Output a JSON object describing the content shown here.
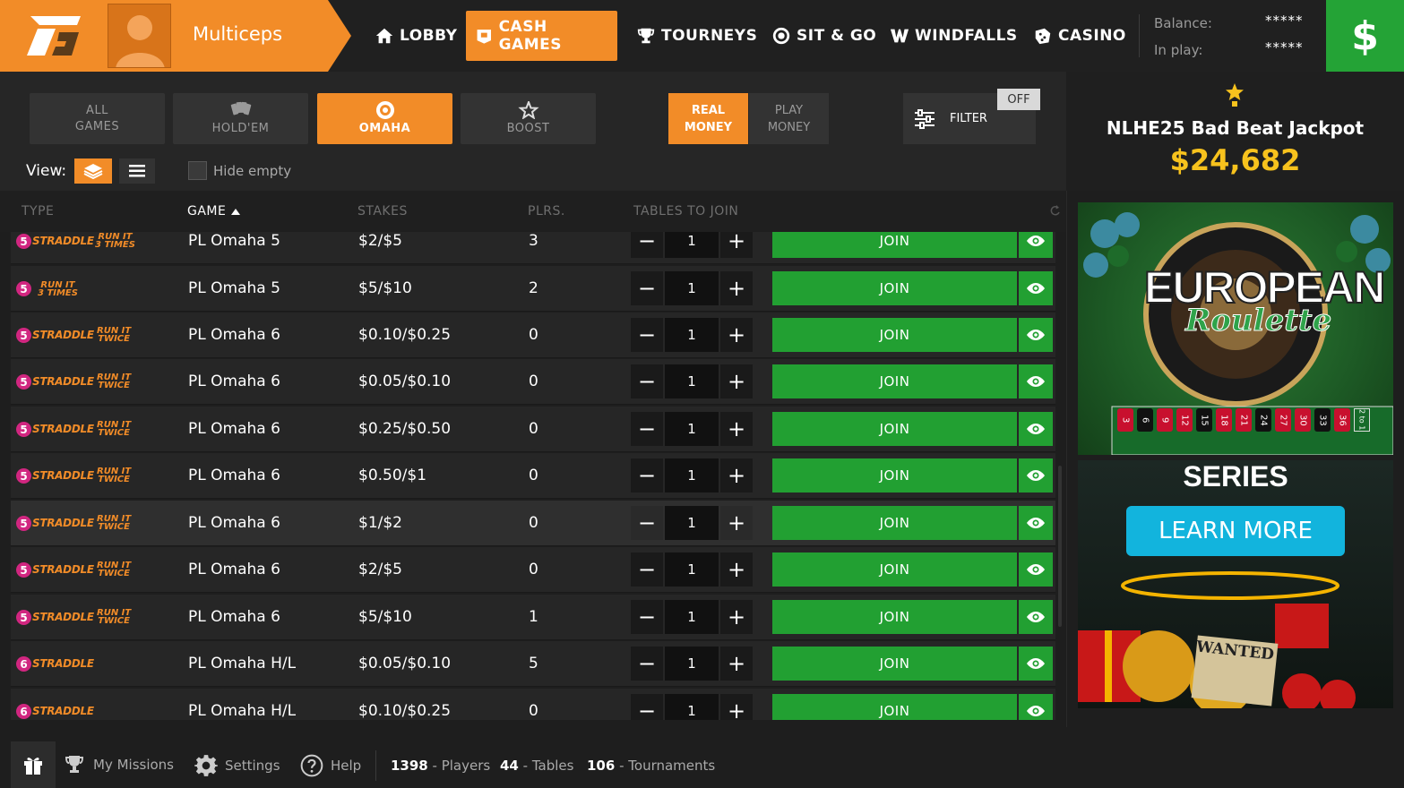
{
  "header": {
    "username": "Multiceps",
    "nav": [
      {
        "label": "LOBBY",
        "icon": "home-icon"
      },
      {
        "label": "CASH GAMES",
        "icon": "cash-games-icon",
        "active": true
      },
      {
        "label": "TOURNEYS",
        "icon": "trophy-icon"
      },
      {
        "label": "SIT & GO",
        "icon": "sit-go-icon"
      },
      {
        "label": "WINDFALLS",
        "icon": "windfalls-icon"
      },
      {
        "label": "CASINO",
        "icon": "dice-icon"
      }
    ],
    "balance_label": "Balance:",
    "balance_value": "*****",
    "inplay_label": "In play:",
    "inplay_value": "*****",
    "cashier_symbol": "$"
  },
  "filters": {
    "game_tabs": [
      {
        "label": "ALL GAMES",
        "line1": "ALL",
        "line2": "GAMES"
      },
      {
        "label": "HOLD'EM"
      },
      {
        "label": "OMAHA",
        "active": true
      },
      {
        "label": "BOOST"
      }
    ],
    "money_tabs": [
      {
        "line1": "REAL",
        "line2": "MONEY",
        "active": true
      },
      {
        "line1": "PLAY",
        "line2": "MONEY"
      }
    ],
    "filter_label": "FILTER",
    "filter_state": "OFF",
    "view_label": "View:",
    "hide_empty_label": "Hide empty"
  },
  "table": {
    "columns": [
      "TYPE",
      "GAME",
      "STAKES",
      "PLRS.",
      "TABLES TO JOIN"
    ],
    "sort_column": "GAME",
    "join_label": "JOIN",
    "rows": [
      {
        "num": "5",
        "straddle": "STRADDLE",
        "run1": "RUN IT",
        "run2": "3 TIMES",
        "game": "PL Omaha 5",
        "stakes": "$2/$5",
        "players": "3",
        "qty": "1"
      },
      {
        "num": "5",
        "straddle": "",
        "run1": "RUN IT",
        "run2": "3 TIMES",
        "game": "PL Omaha 5",
        "stakes": "$5/$10",
        "players": "2",
        "qty": "1"
      },
      {
        "num": "5",
        "straddle": "STRADDLE",
        "run1": "RUN IT",
        "run2": "TWICE",
        "game": "PL Omaha 6",
        "stakes": "$0.10/$0.25",
        "players": "0",
        "qty": "1"
      },
      {
        "num": "5",
        "straddle": "STRADDLE",
        "run1": "RUN IT",
        "run2": "TWICE",
        "game": "PL Omaha 6",
        "stakes": "$0.05/$0.10",
        "players": "0",
        "qty": "1"
      },
      {
        "num": "5",
        "straddle": "STRADDLE",
        "run1": "RUN IT",
        "run2": "TWICE",
        "game": "PL Omaha 6",
        "stakes": "$0.25/$0.50",
        "players": "0",
        "qty": "1"
      },
      {
        "num": "5",
        "straddle": "STRADDLE",
        "run1": "RUN IT",
        "run2": "TWICE",
        "game": "PL Omaha 6",
        "stakes": "$0.50/$1",
        "players": "0",
        "qty": "1"
      },
      {
        "num": "5",
        "straddle": "STRADDLE",
        "run1": "RUN IT",
        "run2": "TWICE",
        "game": "PL Omaha 6",
        "stakes": "$1/$2",
        "players": "0",
        "qty": "1",
        "highlight": true
      },
      {
        "num": "5",
        "straddle": "STRADDLE",
        "run1": "RUN IT",
        "run2": "TWICE",
        "game": "PL Omaha 6",
        "stakes": "$2/$5",
        "players": "0",
        "qty": "1"
      },
      {
        "num": "5",
        "straddle": "STRADDLE",
        "run1": "RUN IT",
        "run2": "TWICE",
        "game": "PL Omaha 6",
        "stakes": "$5/$10",
        "players": "1",
        "qty": "1"
      },
      {
        "num": "6",
        "straddle": "STRADDLE",
        "run1": "",
        "run2": "",
        "game": "PL Omaha H/L",
        "stakes": "$0.05/$0.10",
        "players": "5",
        "qty": "1"
      },
      {
        "num": "6",
        "straddle": "STRADDLE",
        "run1": "",
        "run2": "",
        "game": "PL Omaha H/L",
        "stakes": "$0.10/$0.25",
        "players": "0",
        "qty": "1"
      }
    ]
  },
  "jackpot": {
    "title": "NLHE25 Bad Beat Jackpot",
    "amount": "$24,682"
  },
  "promos": {
    "roulette_title": "EUROPEAN",
    "roulette_script": "Roulette",
    "roulette_numbers": [
      "3",
      "6",
      "9",
      "12",
      "15",
      "18",
      "21",
      "24",
      "27",
      "30",
      "33",
      "36",
      "2 to 1"
    ],
    "series_label": "SERIES",
    "learn_more": "LEARN MORE",
    "wanted": "WANTED"
  },
  "footer": {
    "missions": "My Missions",
    "settings": "Settings",
    "help": "Help",
    "players_count": "1398",
    "players_label": "- Players",
    "tables_count": "44",
    "tables_label": "- Tables",
    "tournaments_count": "106",
    "tournaments_label": "- Tournaments"
  },
  "colors": {
    "accent": "#f28c28",
    "join_green": "#22a032",
    "jackpot_yellow": "#f7c21d",
    "badge_pink": "#d12680"
  }
}
